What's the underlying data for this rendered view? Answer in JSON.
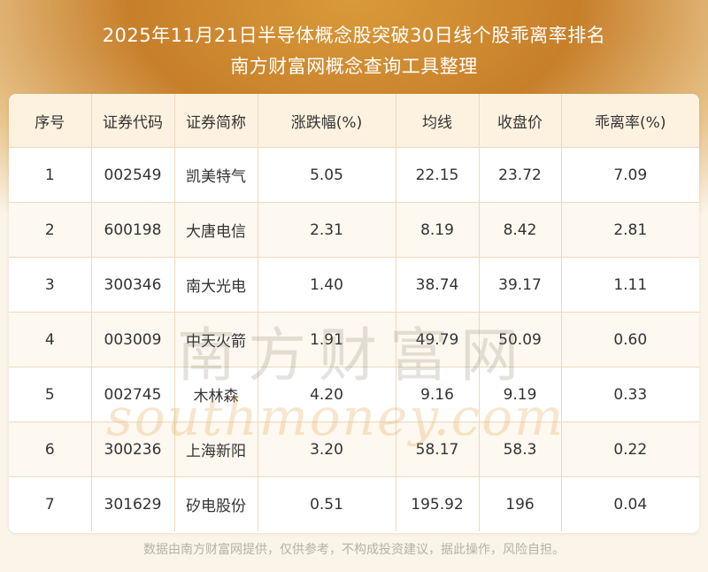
{
  "title": {
    "line1": "2025年11月21日半导体概念股突破30日线个股乖离率排名",
    "line2": "南方财富网概念查询工具整理"
  },
  "table": {
    "headers": [
      "序号",
      "证券代码",
      "证券简称",
      "涨跌幅(%)",
      "均线",
      "收盘价",
      "乖离率(%)"
    ],
    "rows": [
      [
        "1",
        "002549",
        "凯美特气",
        "5.05",
        "22.15",
        "23.72",
        "7.09"
      ],
      [
        "2",
        "600198",
        "大唐电信",
        "2.31",
        "8.19",
        "8.42",
        "2.81"
      ],
      [
        "3",
        "300346",
        "南大光电",
        "1.40",
        "38.74",
        "39.17",
        "1.11"
      ],
      [
        "4",
        "003009",
        "中天火箭",
        "1.91",
        "49.79",
        "50.09",
        "0.60"
      ],
      [
        "5",
        "002745",
        "木林森",
        "4.20",
        "9.16",
        "9.19",
        "0.33"
      ],
      [
        "6",
        "300236",
        "上海新阳",
        "3.20",
        "58.17",
        "58.3",
        "0.22"
      ],
      [
        "7",
        "301629",
        "矽电股份",
        "0.51",
        "195.92",
        "196",
        "0.04"
      ]
    ]
  },
  "watermark": {
    "cn": "南方财富网",
    "en": "southmoney.com"
  },
  "footer": "数据由南方财富网提供，仅供参考，不构成投资建议，据此操作，风险自担。",
  "colors": {
    "header_brown": "#c77f2a",
    "header_row_bg": "#fdf2df",
    "grid_line": "#ecd9bd"
  }
}
